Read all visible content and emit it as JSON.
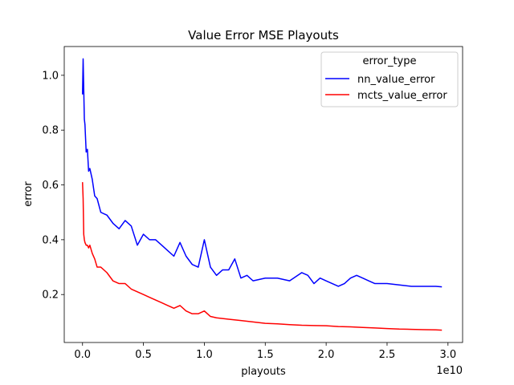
{
  "chart_data": {
    "type": "line",
    "title": "Value Error MSE Playouts",
    "xlabel": "playouts",
    "ylabel": "error",
    "x_offset_label": "1e10",
    "xlim": [
      -0.15,
      3.12
    ],
    "ylim": [
      0.025,
      1.105
    ],
    "x_ticks": [
      0.0,
      0.5,
      1.0,
      1.5,
      2.0,
      2.5,
      3.0
    ],
    "x_tick_labels": [
      "0.0",
      "0.5",
      "1.0",
      "1.5",
      "2.0",
      "2.5",
      "3.0"
    ],
    "y_ticks": [
      0.2,
      0.4,
      0.6,
      0.8,
      1.0
    ],
    "y_tick_labels": [
      "0.2",
      "0.4",
      "0.6",
      "0.8",
      "1.0"
    ],
    "grid": false,
    "legend": {
      "title": "error_type",
      "placement": "top-right"
    },
    "series": [
      {
        "name": "nn_value_error",
        "color": "#0000ff",
        "x": [
          0.0,
          0.005,
          0.01,
          0.015,
          0.02,
          0.03,
          0.04,
          0.05,
          0.06,
          0.08,
          0.1,
          0.12,
          0.15,
          0.2,
          0.25,
          0.3,
          0.35,
          0.4,
          0.45,
          0.5,
          0.55,
          0.6,
          0.65,
          0.7,
          0.75,
          0.8,
          0.85,
          0.9,
          0.95,
          1.0,
          1.05,
          1.1,
          1.15,
          1.2,
          1.25,
          1.3,
          1.35,
          1.4,
          1.5,
          1.6,
          1.7,
          1.8,
          1.85,
          1.9,
          1.95,
          2.0,
          2.05,
          2.1,
          2.15,
          2.2,
          2.25,
          2.3,
          2.35,
          2.4,
          2.5,
          2.6,
          2.7,
          2.8,
          2.9,
          2.95
        ],
        "y": [
          0.93,
          1.06,
          0.95,
          0.84,
          0.82,
          0.72,
          0.73,
          0.65,
          0.66,
          0.62,
          0.56,
          0.55,
          0.5,
          0.49,
          0.46,
          0.44,
          0.47,
          0.45,
          0.38,
          0.42,
          0.4,
          0.4,
          0.38,
          0.36,
          0.34,
          0.39,
          0.34,
          0.31,
          0.3,
          0.4,
          0.3,
          0.27,
          0.29,
          0.29,
          0.33,
          0.26,
          0.27,
          0.25,
          0.26,
          0.26,
          0.25,
          0.28,
          0.27,
          0.24,
          0.26,
          0.25,
          0.24,
          0.23,
          0.24,
          0.26,
          0.27,
          0.26,
          0.25,
          0.24,
          0.24,
          0.235,
          0.23,
          0.23,
          0.23,
          0.228
        ]
      },
      {
        "name": "mcts_value_error",
        "color": "#ff0000",
        "x": [
          0.0,
          0.005,
          0.01,
          0.015,
          0.02,
          0.03,
          0.04,
          0.05,
          0.06,
          0.08,
          0.1,
          0.12,
          0.15,
          0.2,
          0.25,
          0.3,
          0.35,
          0.4,
          0.45,
          0.5,
          0.55,
          0.6,
          0.65,
          0.7,
          0.75,
          0.8,
          0.85,
          0.9,
          0.95,
          1.0,
          1.05,
          1.1,
          1.2,
          1.3,
          1.4,
          1.5,
          1.6,
          1.7,
          1.8,
          1.9,
          2.0,
          2.1,
          2.2,
          2.3,
          2.4,
          2.5,
          2.6,
          2.7,
          2.8,
          2.9,
          2.95
        ],
        "y": [
          0.61,
          0.55,
          0.42,
          0.4,
          0.39,
          0.38,
          0.38,
          0.37,
          0.38,
          0.35,
          0.33,
          0.3,
          0.3,
          0.28,
          0.25,
          0.24,
          0.24,
          0.22,
          0.21,
          0.2,
          0.19,
          0.18,
          0.17,
          0.16,
          0.15,
          0.16,
          0.14,
          0.13,
          0.13,
          0.14,
          0.12,
          0.115,
          0.11,
          0.105,
          0.1,
          0.095,
          0.093,
          0.09,
          0.088,
          0.087,
          0.086,
          0.083,
          0.082,
          0.08,
          0.078,
          0.076,
          0.074,
          0.073,
          0.072,
          0.071,
          0.07
        ]
      }
    ]
  }
}
